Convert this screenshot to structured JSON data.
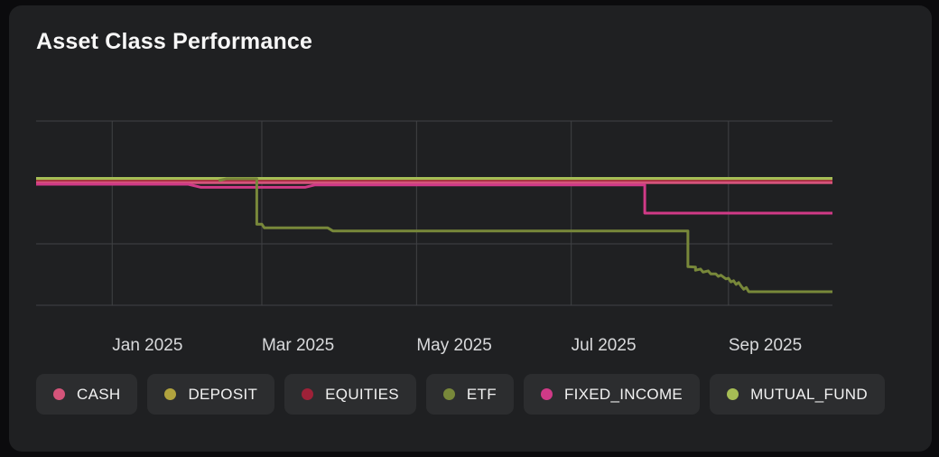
{
  "card": {
    "title": "Asset Class Performance"
  },
  "theme": {
    "page_bg": "#0b0b0d",
    "card_bg": "#1f2022",
    "pill_bg": "#2c2d2f",
    "grid_color": "#414245",
    "axis_text_color": "#d9dadc",
    "title_color": "#f7f7f7"
  },
  "legend": {
    "items": [
      {
        "label": "CASH",
        "color": "#d4547a"
      },
      {
        "label": "DEPOSIT",
        "color": "#b1a33e"
      },
      {
        "label": "EQUITIES",
        "color": "#9e2138"
      },
      {
        "label": "ETF",
        "color": "#78883a"
      },
      {
        "label": "FIXED_INCOME",
        "color": "#d03a87"
      },
      {
        "label": "MUTUAL_FUND",
        "color": "#a6bd55"
      }
    ]
  },
  "chart_data": {
    "type": "line",
    "title": "Asset Class Performance",
    "grid": true,
    "legend_position": "bottom",
    "x_axis": {
      "domain": [
        "2024-12-02",
        "2025-10-12"
      ],
      "ticks": [
        {
          "date": "2025-01-01",
          "label": "Jan 2025"
        },
        {
          "date": "2025-03-01",
          "label": "Mar 2025"
        },
        {
          "date": "2025-05-01",
          "label": "May 2025"
        },
        {
          "date": "2025-07-01",
          "label": "Jul 2025"
        },
        {
          "date": "2025-09-01",
          "label": "Sep 2025"
        }
      ]
    },
    "y_axis": {
      "domain": [
        5,
        -10
      ],
      "ticks": [
        5,
        0,
        -5,
        -10
      ],
      "labels_visible": false,
      "unit": "relative performance (axis unlabeled)"
    },
    "series": [
      {
        "name": "DEPOSIT",
        "color": "#b1a33e",
        "points": [
          [
            "2024-12-02",
            0.2
          ],
          [
            "2025-10-12",
            0.2
          ]
        ]
      },
      {
        "name": "EQUITIES",
        "color": "#9e2138",
        "points": [
          [
            "2024-12-02",
            0.09
          ],
          [
            "2025-10-12",
            0.09
          ]
        ]
      },
      {
        "name": "CASH",
        "color": "#d4547a",
        "points": [
          [
            "2024-12-02",
            -0.02
          ],
          [
            "2025-10-12",
            -0.02
          ]
        ]
      },
      {
        "name": "MUTUAL_FUND",
        "color": "#a6bd55",
        "points": [
          [
            "2024-12-02",
            0.33
          ],
          [
            "2025-10-12",
            0.33
          ]
        ]
      },
      {
        "name": "FIXED_INCOME",
        "color": "#d03a87",
        "points": [
          [
            "2024-12-02",
            -0.15
          ],
          [
            "2025-01-31",
            -0.15
          ],
          [
            "2025-02-05",
            -0.4
          ],
          [
            "2025-03-18",
            -0.4
          ],
          [
            "2025-03-22",
            -0.2
          ],
          [
            "2025-07-30",
            -0.2
          ],
          [
            "2025-07-30",
            -2.5
          ],
          [
            "2025-10-12",
            -2.5
          ]
        ]
      },
      {
        "name": "ETF",
        "color": "#78883a",
        "points": [
          [
            "2025-02-12",
            0.15
          ],
          [
            "2025-02-15",
            0.3
          ],
          [
            "2025-02-27",
            0.3
          ],
          [
            "2025-02-27",
            -3.4
          ],
          [
            "2025-03-01",
            -3.4
          ],
          [
            "2025-03-02",
            -3.7
          ],
          [
            "2025-03-27",
            -3.7
          ],
          [
            "2025-03-29",
            -3.95
          ],
          [
            "2025-08-16",
            -3.95
          ],
          [
            "2025-08-16",
            -6.85
          ],
          [
            "2025-08-19",
            -6.9
          ],
          [
            "2025-08-19",
            -7.15
          ],
          [
            "2025-08-21",
            -7.05
          ],
          [
            "2025-08-22",
            -7.3
          ],
          [
            "2025-08-24",
            -7.2
          ],
          [
            "2025-08-25",
            -7.45
          ],
          [
            "2025-08-27",
            -7.45
          ],
          [
            "2025-08-28",
            -7.65
          ],
          [
            "2025-08-29",
            -7.55
          ],
          [
            "2025-08-31",
            -7.85
          ],
          [
            "2025-09-01",
            -7.8
          ],
          [
            "2025-09-02",
            -8.1
          ],
          [
            "2025-09-03",
            -8.0
          ],
          [
            "2025-09-04",
            -8.3
          ],
          [
            "2025-09-05",
            -8.15
          ],
          [
            "2025-09-06",
            -8.45
          ],
          [
            "2025-09-07",
            -8.7
          ],
          [
            "2025-09-08",
            -8.55
          ],
          [
            "2025-09-09",
            -8.9
          ],
          [
            "2025-10-12",
            -8.9
          ]
        ]
      }
    ],
    "pixel_layout": {
      "x_range": [
        30,
        912
      ],
      "y_range": [
        128,
        332
      ],
      "x_label_baseline": 382,
      "x_label_font_size": 19,
      "line_width": 3
    }
  }
}
